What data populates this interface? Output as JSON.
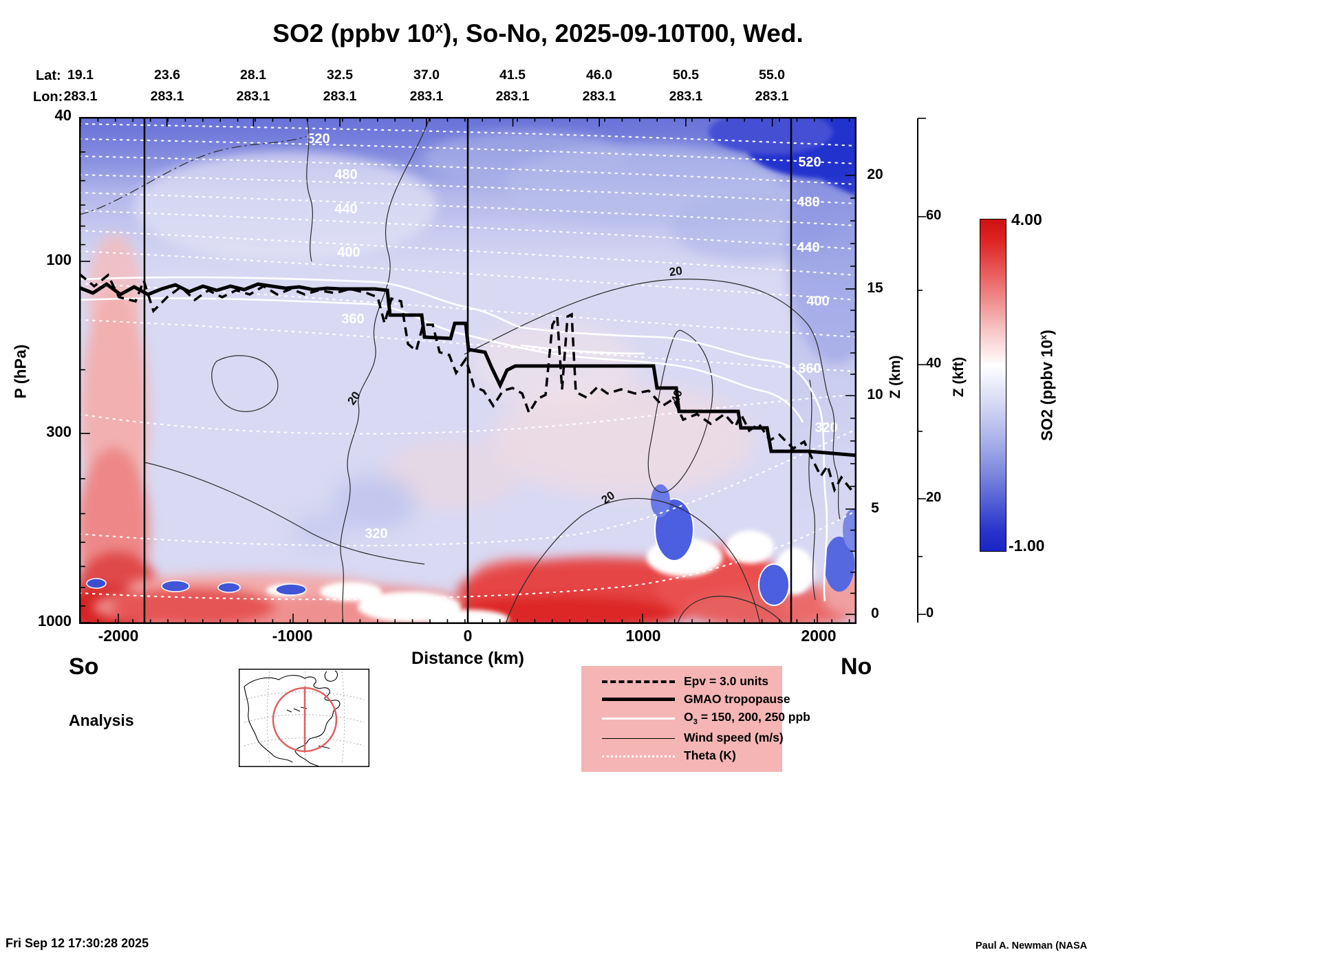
{
  "page": {
    "title": {
      "pre": "SO2 (ppbv 10",
      "sup": "x",
      "post": "), So-No, 2025-09-10T00, Wed."
    },
    "footer": {
      "timestamp": "Fri Sep 12 17:30:28 2025",
      "credit": "Paul A. Newman (NASA"
    }
  },
  "top_axis": {
    "lat_label": "Lat:",
    "lon_label": "Lon:",
    "lats": [
      "19.1",
      "23.6",
      "28.1",
      "32.5",
      "37.0",
      "41.5",
      "46.0",
      "50.5",
      "55.0"
    ],
    "lons": [
      "283.1",
      "283.1",
      "283.1",
      "283.1",
      "283.1",
      "283.1",
      "283.1",
      "283.1",
      "283.1"
    ]
  },
  "axes": {
    "pressure": {
      "label": "P (hPa)",
      "ticks": [
        "40",
        "100",
        "300",
        "1000"
      ]
    },
    "z_km": {
      "label": "Z (km)",
      "ticks": [
        "20",
        "15",
        "10",
        "5",
        "0"
      ]
    },
    "z_kft": {
      "label": "Z (kft)",
      "ticks": [
        "60",
        "40",
        "20",
        "0"
      ]
    },
    "distance": {
      "label": "Distance (km)",
      "ticks": [
        "-2000",
        "-1000",
        "0",
        "1000",
        "2000"
      ]
    },
    "south_label": "So",
    "north_label": "No",
    "analysis_label": "Analysis"
  },
  "colorbar": {
    "max": "4.00",
    "min": "-1.00",
    "label": {
      "pre": "SO2 (ppbv 10",
      "sup": "x",
      "post": ")"
    }
  },
  "legend": {
    "epv": "Epv = 3.0 units",
    "tropopause": "GMAO tropopause",
    "o3_pre": "O",
    "o3_sub": "3",
    "o3_post": " = 150, 200, 250 ppb",
    "wind": "Wind speed (m/s)",
    "theta": "Theta (K)"
  },
  "plot_labels": {
    "theta_left": [
      "520",
      "480",
      "440",
      "400",
      "360",
      "320"
    ],
    "theta_right": [
      "520",
      "480",
      "440",
      "400",
      "360",
      "320"
    ],
    "wind": [
      "20",
      "20",
      "40",
      "20"
    ]
  },
  "chart_data": {
    "type": "heatmap",
    "title": "SO2 (ppbv 10^x), So-No, 2025-09-10T00, Wed.",
    "field": "SO2",
    "units": "ppbv 10^x",
    "valid_time": "2025-09-10T00",
    "weekday": "Wed.",
    "analysis_type": "Analysis",
    "section_orientation": "South (So) to North (No) vertical cross-section at fixed longitude 283.1",
    "track": [
      {
        "lat": 19.1,
        "lon": 283.1
      },
      {
        "lat": 23.6,
        "lon": 283.1
      },
      {
        "lat": 28.1,
        "lon": 283.1
      },
      {
        "lat": 32.5,
        "lon": 283.1
      },
      {
        "lat": 37.0,
        "lon": 283.1
      },
      {
        "lat": 41.5,
        "lon": 283.1
      },
      {
        "lat": 46.0,
        "lon": 283.1
      },
      {
        "lat": 50.5,
        "lon": 283.1
      },
      {
        "lat": 55.0,
        "lon": 283.1
      }
    ],
    "x_axis": {
      "label": "Distance (km)",
      "min": -2250,
      "max": 2250,
      "ticks": [
        -2000,
        -1000,
        0,
        1000,
        2000
      ]
    },
    "y_axis_pressure": {
      "label": "P (hPa)",
      "scale": "log",
      "min": 40,
      "max": 1000,
      "ticks": [
        40,
        100,
        300,
        1000
      ]
    },
    "y_axis_altitude_km": {
      "label": "Z (km)",
      "ticks": [
        0,
        5,
        10,
        15,
        20
      ]
    },
    "y_axis_altitude_kft": {
      "label": "Z (kft)",
      "ticks": [
        0,
        20,
        40,
        60
      ]
    },
    "colorbar": {
      "label": "SO2 (ppbv 10^x)",
      "min": -1.0,
      "max": 4.0,
      "palette": "blue-white-red diverging"
    },
    "overlay_contours": {
      "theta_K": [
        320,
        340,
        360,
        380,
        400,
        420,
        440,
        460,
        480,
        500,
        520,
        540
      ],
      "theta_labeled_K": [
        320,
        360,
        400,
        440,
        480,
        520
      ],
      "wind_speed_ms": [
        20,
        40
      ],
      "epv_units": 3.0,
      "o3_ppb": [
        150,
        200,
        250
      ],
      "tropopause_source": "GMAO"
    },
    "tropopause_pressure_hPa_approx": [
      {
        "distance_km": -2250,
        "p_hPa": 120
      },
      {
        "distance_km": -1500,
        "p_hPa": 120
      },
      {
        "distance_km": -800,
        "p_hPa": 120
      },
      {
        "distance_km": -550,
        "p_hPa": 140
      },
      {
        "distance_km": -250,
        "p_hPa": 160
      },
      {
        "distance_km": 0,
        "p_hPa": 175
      },
      {
        "distance_km": 300,
        "p_hPa": 195
      },
      {
        "distance_km": 1050,
        "p_hPa": 195
      },
      {
        "distance_km": 1250,
        "p_hPa": 260
      },
      {
        "distance_km": 1600,
        "p_hPa": 290
      },
      {
        "distance_km": 2000,
        "p_hPa": 335
      },
      {
        "distance_km": 2250,
        "p_hPa": 340
      }
    ],
    "so2_features": [
      "Strong SO2 maximum (red, up to ~4) in the boundary layer below ~800 hPa across most of the section, strongest near -2100 km and between 0 and +1200 km",
      "Narrow enhanced SO2 column near -2100 km reaching from the surface to about 150 hPa",
      "SO2 minimum (dark blue, ~-1) in the upper stratosphere at the north end (40-70 hPa)",
      "Small blue minima embedded in the boundary-layer band near 850 hPa",
      "Background light-lavender values through most of the free troposphere and lower stratosphere"
    ]
  }
}
